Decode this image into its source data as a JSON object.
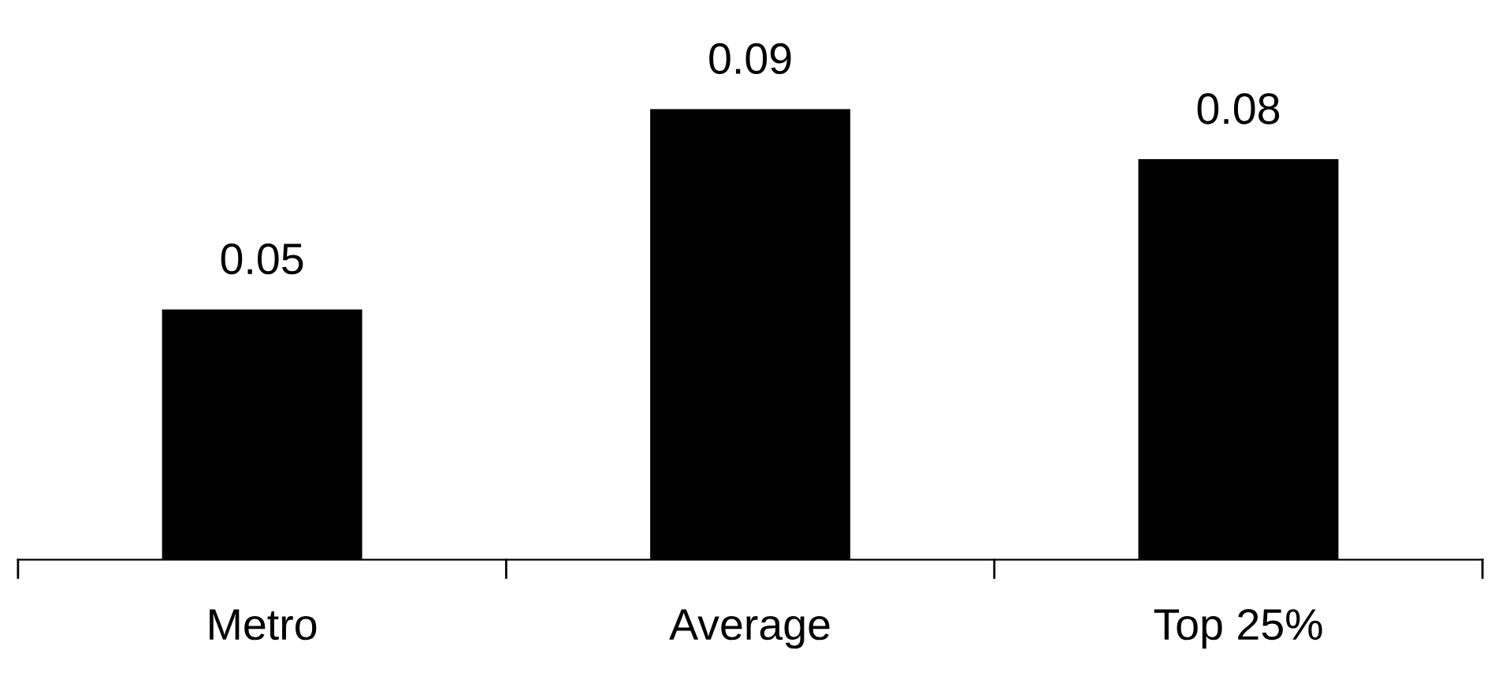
{
  "chart_data": {
    "type": "bar",
    "categories": [
      "Metro",
      "Average",
      "Top 25%"
    ],
    "values": [
      0.05,
      0.09,
      0.08
    ],
    "color": "#000000",
    "data_labels": true,
    "grid": false,
    "legend": false,
    "tick_labels": "x"
  }
}
